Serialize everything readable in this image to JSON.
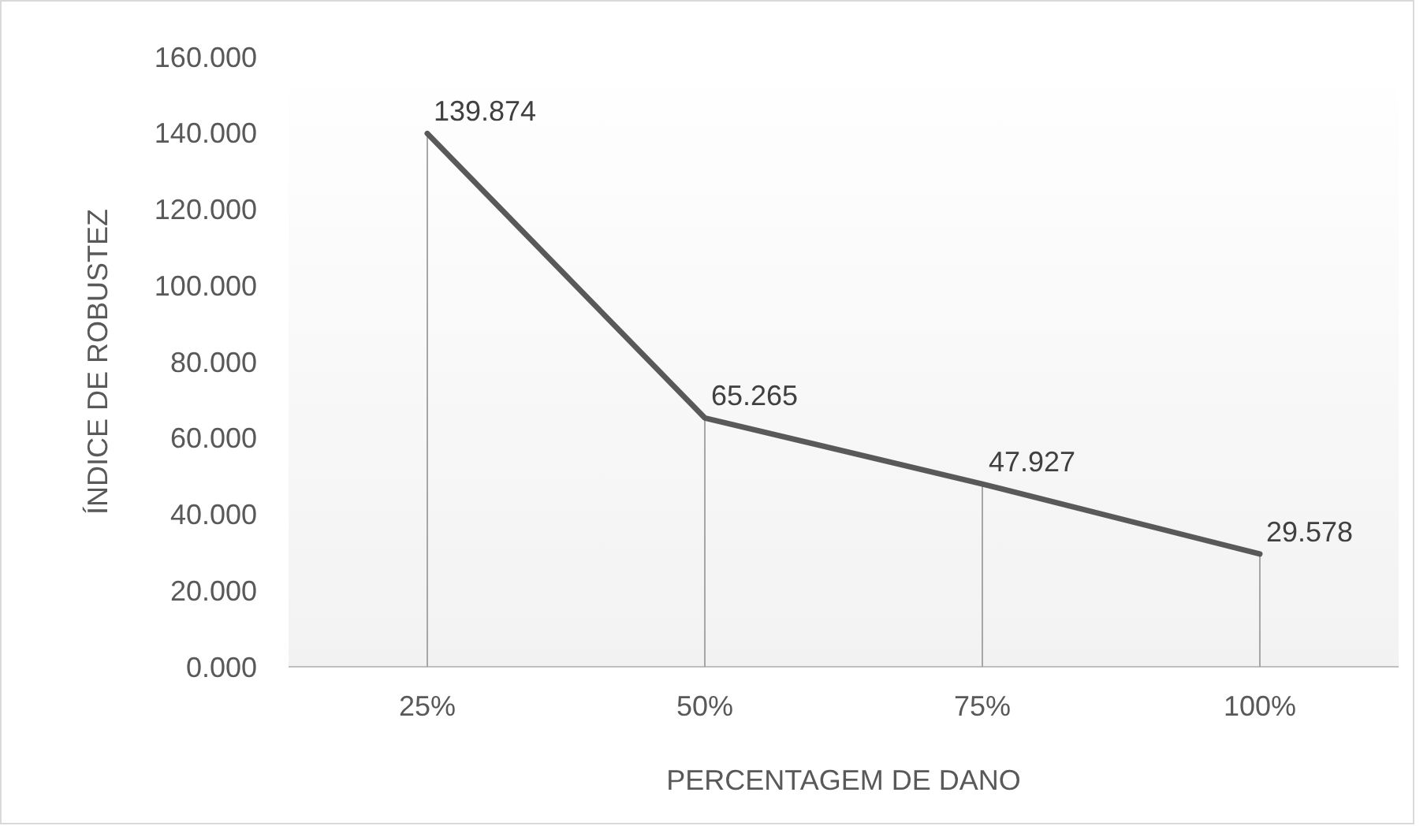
{
  "chart_data": {
    "type": "line",
    "xlabel": "PERCENTAGEM DE DANO",
    "ylabel": "ÍNDICE DE ROBUSTEZ",
    "categories": [
      "25%",
      "50%",
      "75%",
      "100%"
    ],
    "series": [
      {
        "color": "#595959",
        "values": [
          139.874,
          65.265,
          47.927,
          29.578
        ]
      }
    ],
    "ylim": [
      0,
      160
    ],
    "yticks": [
      {
        "value": 0,
        "label": "0.000"
      },
      {
        "value": 20,
        "label": "20.000"
      },
      {
        "value": 40,
        "label": "40.000"
      },
      {
        "value": 60,
        "label": "60.000"
      },
      {
        "value": 80,
        "label": "80.000"
      },
      {
        "value": 100,
        "label": "100.000"
      },
      {
        "value": 120,
        "label": "120.000"
      },
      {
        "value": 140,
        "label": "140.000"
      },
      {
        "value": 160,
        "label": "160.000"
      }
    ],
    "data_labels": true,
    "grid": "x",
    "marker": "none",
    "line_style": "solid"
  }
}
